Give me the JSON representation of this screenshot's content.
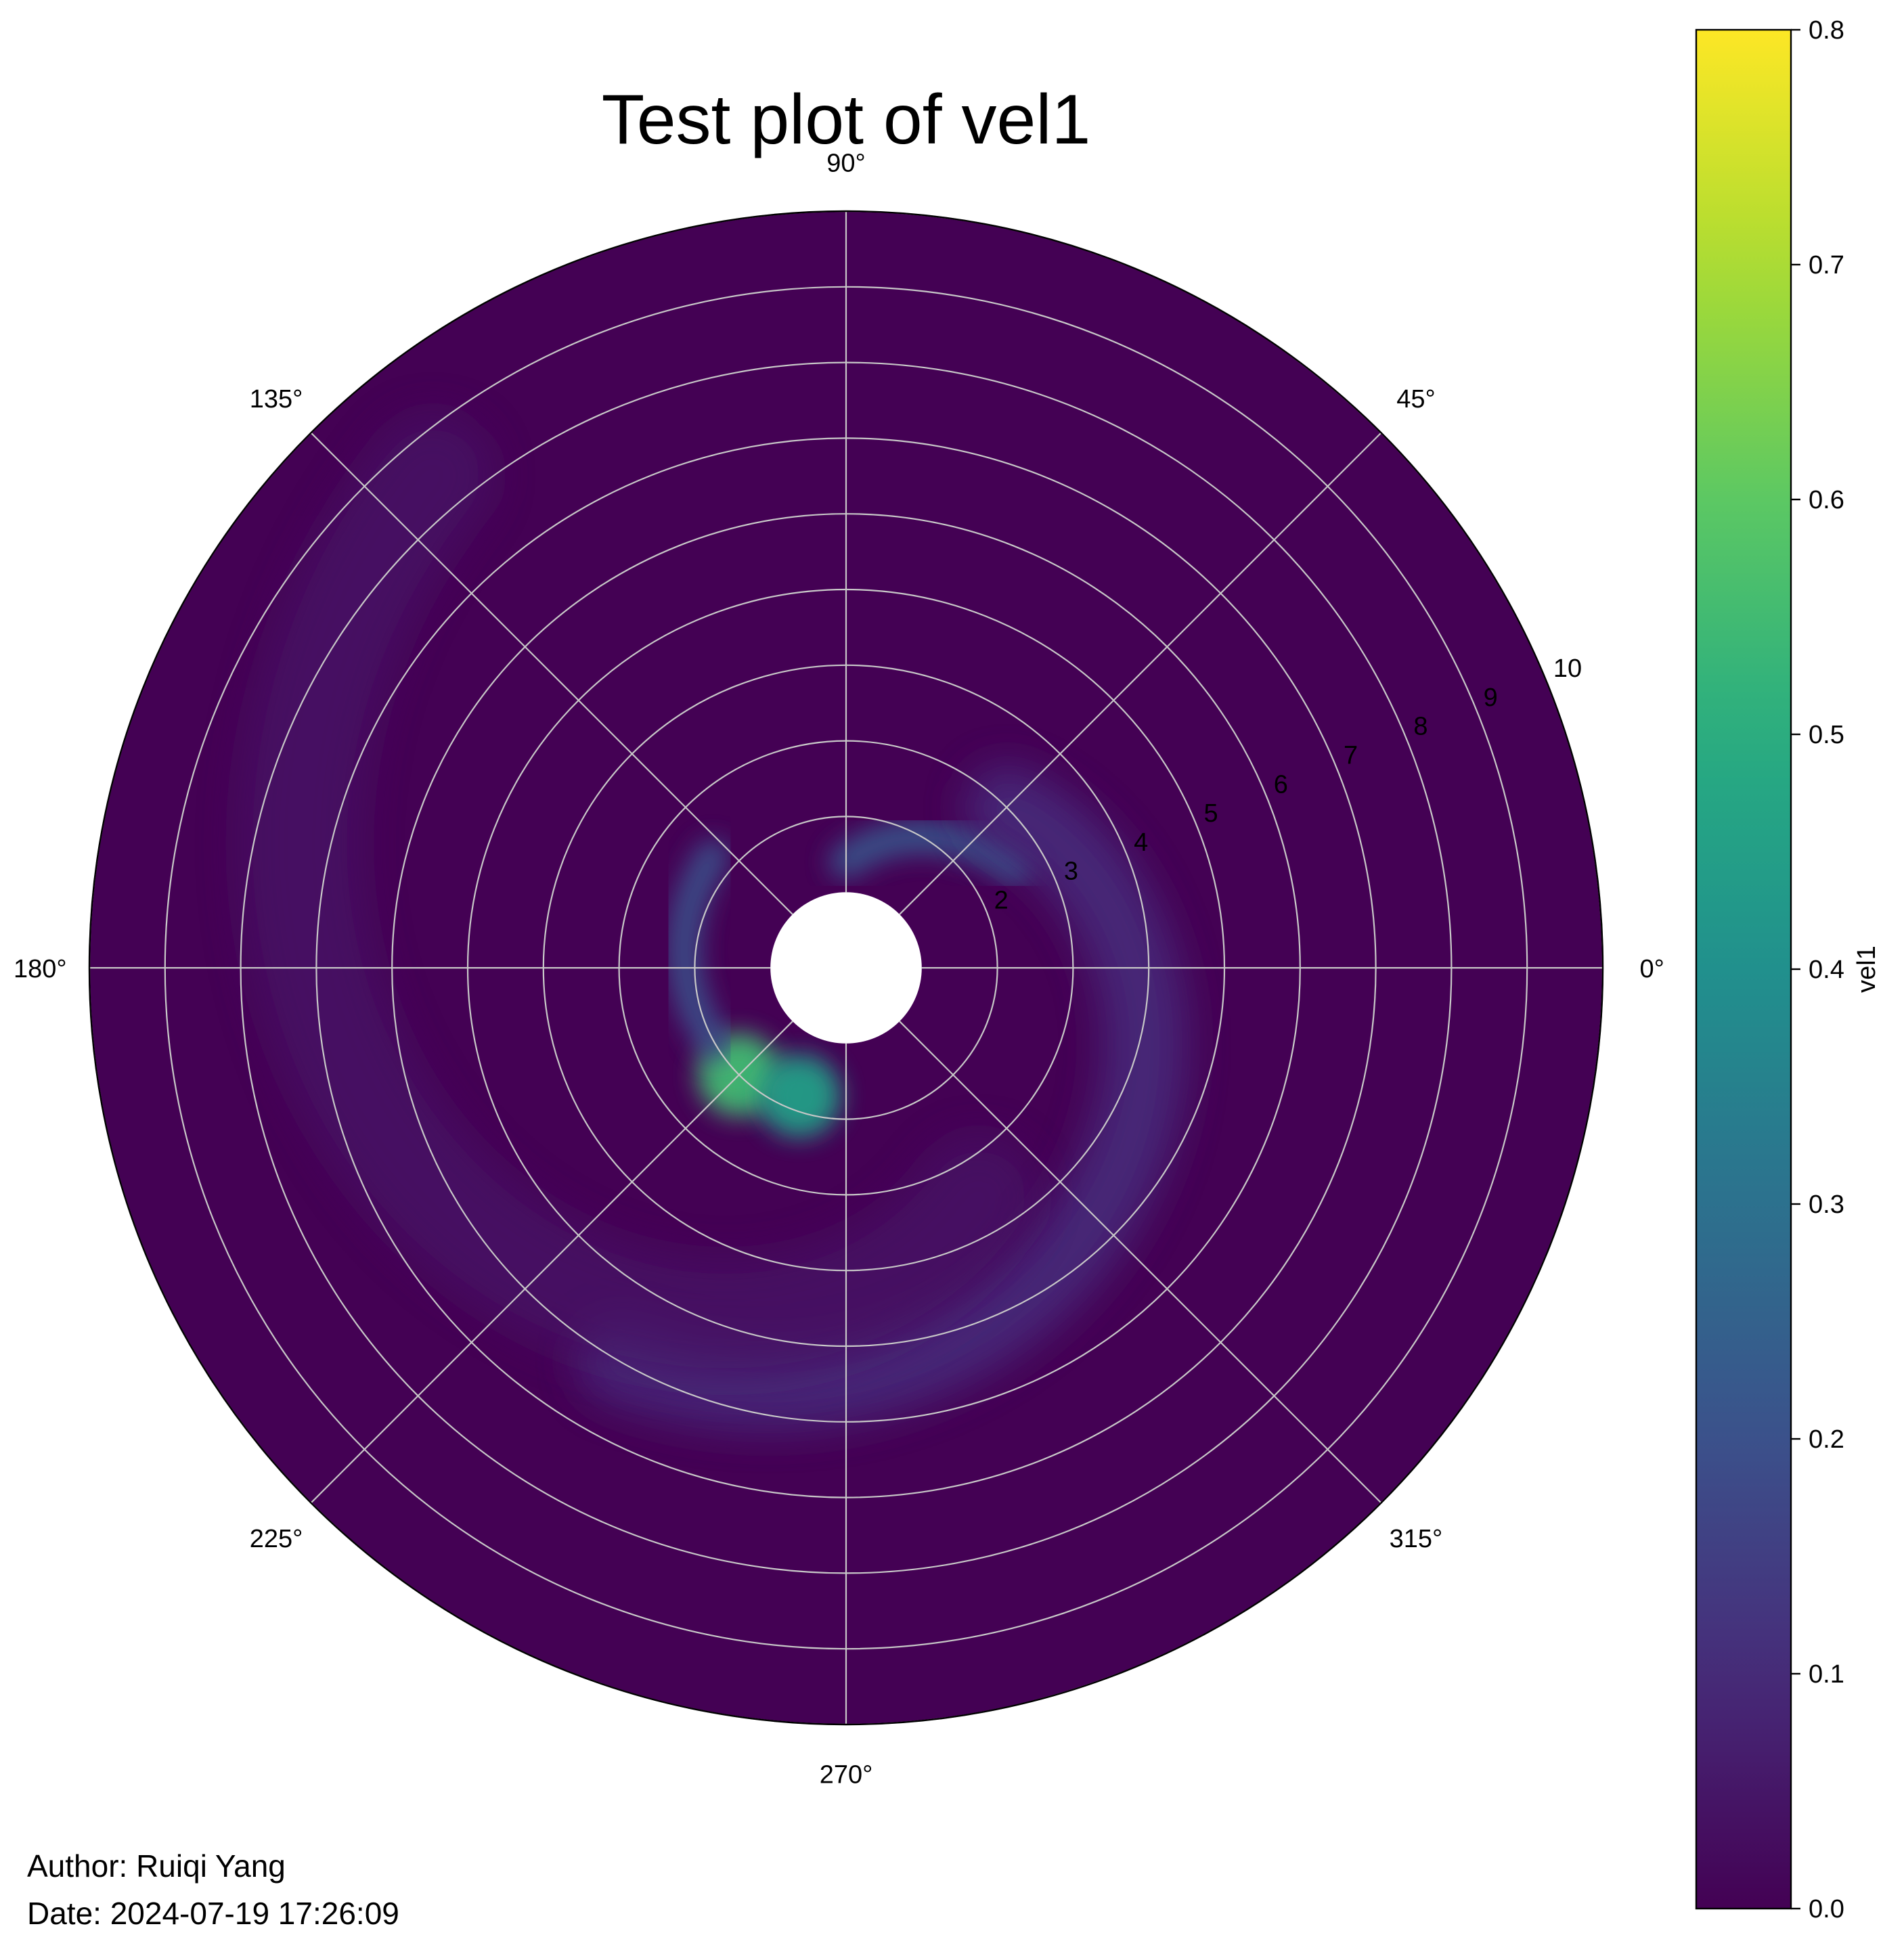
{
  "chart_data": {
    "type": "heatmap",
    "projection": "polar",
    "title": "Test plot of vel1",
    "colorbar": {
      "label": "vel1",
      "colormap": "viridis",
      "range": [
        0.0,
        0.8
      ],
      "ticks": [
        "0.0",
        "0.1",
        "0.2",
        "0.3",
        "0.4",
        "0.5",
        "0.6",
        "0.7",
        "0.8"
      ]
    },
    "angular_axis": {
      "ticks": [
        "0°",
        "45°",
        "90°",
        "135°",
        "180°",
        "225°",
        "270°",
        "315°"
      ]
    },
    "radial_axis": {
      "range": [
        1,
        10
      ],
      "inner_hole_radius": 1,
      "tick_label_angle_deg": 22.5,
      "ticks": [
        2,
        3,
        4,
        5,
        6,
        7,
        8,
        9,
        10
      ]
    },
    "grid": true,
    "background_value": 0.0,
    "features": [
      {
        "kind": "hot-spot",
        "theta_deg": 225,
        "r": 2.0,
        "value": 0.55
      },
      {
        "kind": "hot-spot",
        "theta_deg": 250,
        "r": 1.8,
        "value": 0.45
      },
      {
        "kind": "arm",
        "theta_from_deg": 210,
        "theta_to_deg": 140,
        "r_from": 2.0,
        "r_to": 2.3,
        "value": 0.2
      },
      {
        "kind": "arm",
        "theta_from_deg": 90,
        "theta_to_deg": 30,
        "r_from": 1.4,
        "r_to": 2.6,
        "value": 0.22
      },
      {
        "kind": "spiral",
        "theta_from_deg": 45,
        "theta_to_deg": -120,
        "r_from": 3.0,
        "r_to": 6.0,
        "value": 0.1
      },
      {
        "kind": "faint-spiral",
        "theta_from_deg": -60,
        "theta_to_deg": -230,
        "r_from": 3.5,
        "r_to": 8.5,
        "value": 0.05
      }
    ]
  },
  "footer": {
    "author": "Author: Ruiqi Yang",
    "date": "Date: 2024-07-19 17:26:09"
  },
  "colors": {
    "viridis_low": "#440154",
    "viridis_high": "#fde725",
    "grid": "#c8c8c8",
    "hole": "#ffffff"
  }
}
